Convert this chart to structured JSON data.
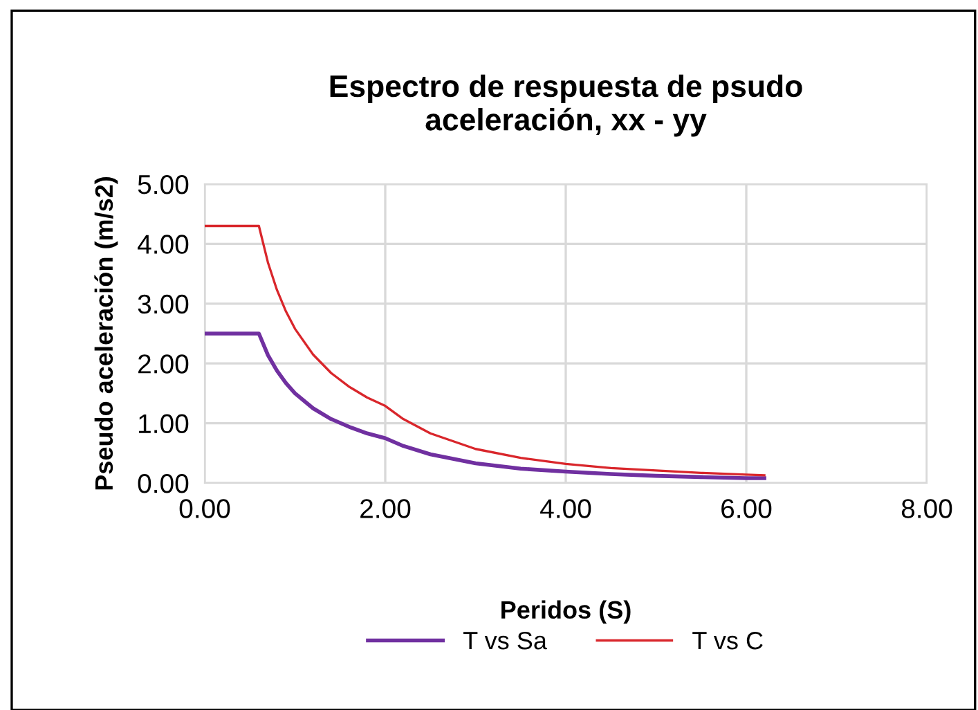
{
  "chart_data": {
    "type": "line",
    "title": "Espectro de respuesta de psudo\naceleración, xx - yy",
    "xlabel": "Peridos (S)",
    "ylabel": "Pseudo aceleración (m/s2)",
    "x": [
      0,
      0.6,
      0.7,
      0.8,
      0.9,
      1.0,
      1.2,
      1.4,
      1.6,
      1.8,
      2.0,
      2.2,
      2.5,
      3.0,
      3.5,
      4.0,
      4.5,
      5.0,
      5.5,
      6.0,
      6.2
    ],
    "series": [
      {
        "name": "T vs Sa",
        "color": "#7030a0",
        "values": [
          2.5,
          2.5,
          2.14,
          1.88,
          1.67,
          1.5,
          1.25,
          1.07,
          0.94,
          0.83,
          0.75,
          0.62,
          0.48,
          0.33,
          0.24,
          0.19,
          0.15,
          0.12,
          0.1,
          0.08,
          0.08
        ]
      },
      {
        "name": "T vs C",
        "color": "#d9262b",
        "values": [
          4.3,
          4.3,
          3.69,
          3.23,
          2.87,
          2.58,
          2.15,
          1.84,
          1.61,
          1.43,
          1.29,
          1.07,
          0.83,
          0.57,
          0.42,
          0.32,
          0.25,
          0.21,
          0.17,
          0.14,
          0.13
        ]
      }
    ],
    "xlim": [
      0,
      8
    ],
    "xticks": [
      {
        "value": 0,
        "label": "0.00"
      },
      {
        "value": 2,
        "label": "2.00"
      },
      {
        "value": 4,
        "label": "4.00"
      },
      {
        "value": 6,
        "label": "6.00"
      },
      {
        "value": 8,
        "label": "8.00"
      }
    ],
    "ylim": [
      0,
      5
    ],
    "yticks": [
      {
        "value": 0,
        "label": "0.00"
      },
      {
        "value": 1,
        "label": "1.00"
      },
      {
        "value": 2,
        "label": "2.00"
      },
      {
        "value": 3,
        "label": "3.00"
      },
      {
        "value": 4,
        "label": "4.00"
      },
      {
        "value": 5,
        "label": "5.00"
      }
    ],
    "grid": true,
    "legend": "bottom",
    "marker": "none",
    "line_style": "solid"
  }
}
